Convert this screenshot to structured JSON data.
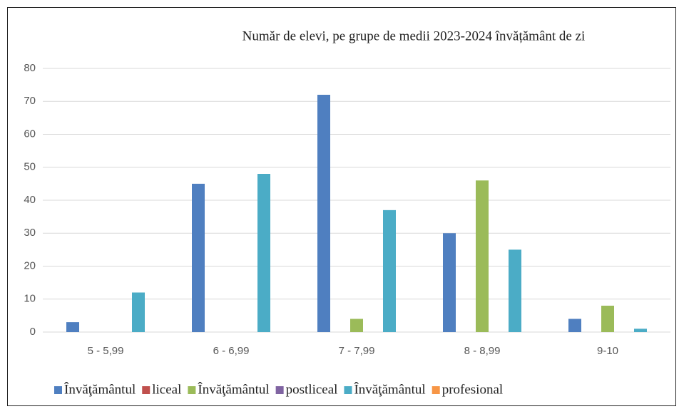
{
  "chart_data": {
    "type": "bar",
    "title": "Număr de elevi, pe grupe de medii 2023-2024 învățământ de zi",
    "categories": [
      "5 - 5,99",
      "6 - 6,99",
      "7 - 7,99",
      "8 - 8,99",
      "9-10"
    ],
    "series": [
      {
        "name": "Învăţământul",
        "color": "#4f7fc0",
        "values": [
          3,
          45,
          72,
          30,
          4
        ]
      },
      {
        "name": "liceal",
        "color": "#c0504d",
        "values": [
          null,
          null,
          null,
          null,
          null
        ]
      },
      {
        "name": "Învăţământul",
        "color": "#9bbb59",
        "values": [
          null,
          null,
          4,
          46,
          8
        ]
      },
      {
        "name": "postliceal",
        "color": "#8064a2",
        "values": [
          null,
          null,
          null,
          null,
          null
        ]
      },
      {
        "name": "Învăţământul",
        "color": "#4bacc6",
        "values": [
          12,
          48,
          37,
          25,
          1
        ]
      },
      {
        "name": "profesional",
        "color": "#f79646",
        "values": [
          null,
          null,
          null,
          null,
          null
        ]
      }
    ],
    "ylim": [
      0,
      80
    ],
    "yticks": [
      0,
      10,
      20,
      30,
      40,
      50,
      60,
      70,
      80
    ],
    "grid": true,
    "legend": "bottom"
  }
}
